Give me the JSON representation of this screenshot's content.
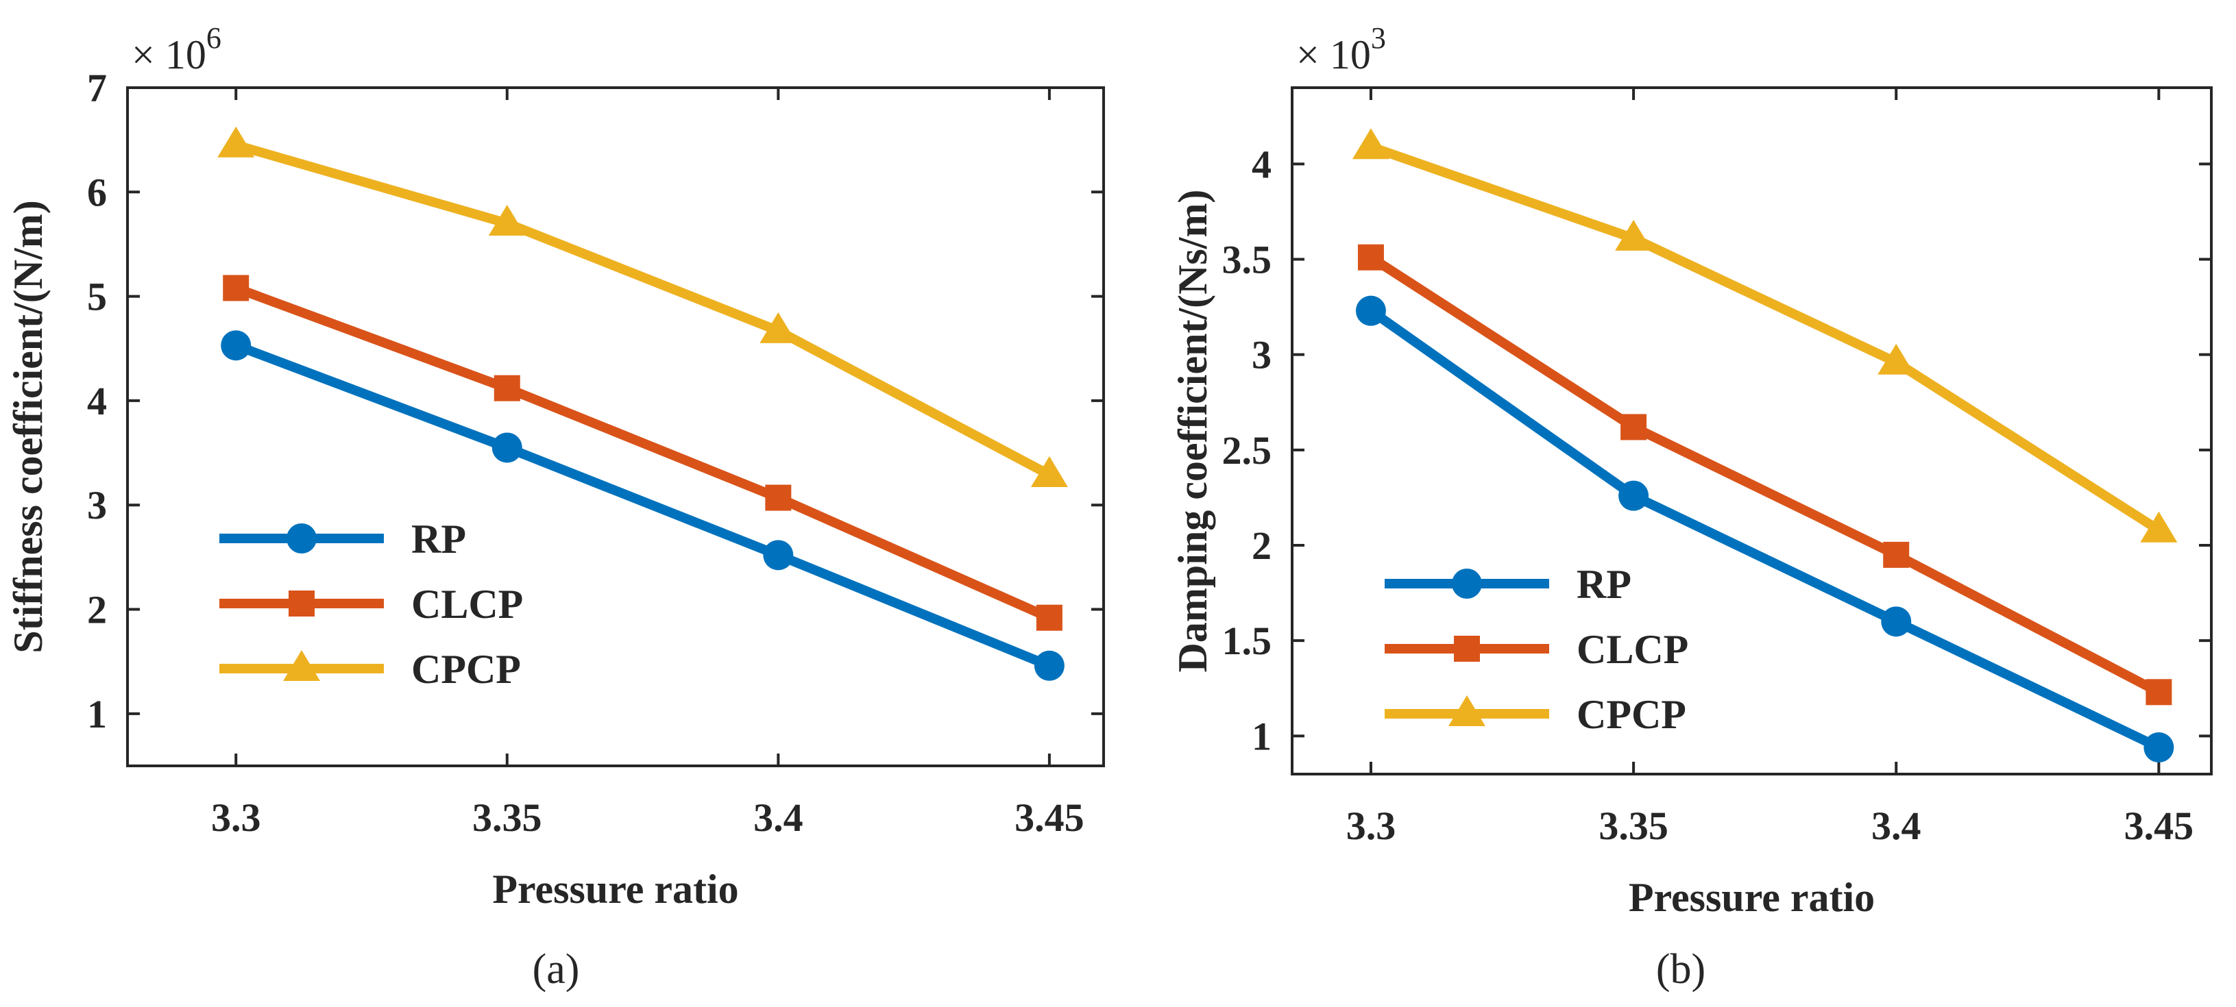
{
  "chart_data": [
    {
      "type": "line",
      "panel_caption": "(a)",
      "xlabel": "Pressure ratio",
      "ylabel": "Stiffness coefficient/(N/m)",
      "y_multiplier": {
        "base": "× 10",
        "exponent": "6"
      },
      "x": [
        3.3,
        3.35,
        3.4,
        3.45
      ],
      "x_ticks": [
        "3.3",
        "3.35",
        "3.4",
        "3.45"
      ],
      "xlim": [
        3.28,
        3.46
      ],
      "y_ticks": [
        "1",
        "2",
        "3",
        "4",
        "5",
        "6",
        "7"
      ],
      "ylim": [
        0.5,
        7
      ],
      "legend_position": "lower-left",
      "series": [
        {
          "name": "RP",
          "color": "#0072BD",
          "marker": "circle",
          "values": [
            4.53,
            3.55,
            2.52,
            1.46
          ]
        },
        {
          "name": "CLCP",
          "color": "#D95319",
          "marker": "square",
          "values": [
            5.08,
            4.12,
            3.07,
            1.92
          ]
        },
        {
          "name": "CPCP",
          "color": "#EDB120",
          "marker": "triangle",
          "values": [
            6.45,
            5.7,
            4.67,
            3.29
          ]
        }
      ]
    },
    {
      "type": "line",
      "panel_caption": "(b)",
      "xlabel": "Pressure ratio",
      "ylabel": "Damping coefficient/(Ns/m)",
      "y_multiplier": {
        "base": "× 10",
        "exponent": "3"
      },
      "x": [
        3.3,
        3.35,
        3.4,
        3.45
      ],
      "x_ticks": [
        "3.3",
        "3.35",
        "3.4",
        "3.45"
      ],
      "xlim": [
        3.285,
        3.46
      ],
      "y_ticks": [
        "1",
        "1.5",
        "2",
        "2.5",
        "3",
        "3.5",
        "4"
      ],
      "ylim": [
        0.8,
        4.4
      ],
      "legend_position": "lower-left",
      "series": [
        {
          "name": "RP",
          "color": "#0072BD",
          "marker": "circle",
          "values": [
            3.23,
            2.26,
            1.6,
            0.94
          ]
        },
        {
          "name": "CLCP",
          "color": "#D95319",
          "marker": "square",
          "values": [
            3.51,
            2.62,
            1.95,
            1.23
          ]
        },
        {
          "name": "CPCP",
          "color": "#EDB120",
          "marker": "triangle",
          "values": [
            4.09,
            3.61,
            2.96,
            2.08
          ]
        }
      ]
    }
  ]
}
